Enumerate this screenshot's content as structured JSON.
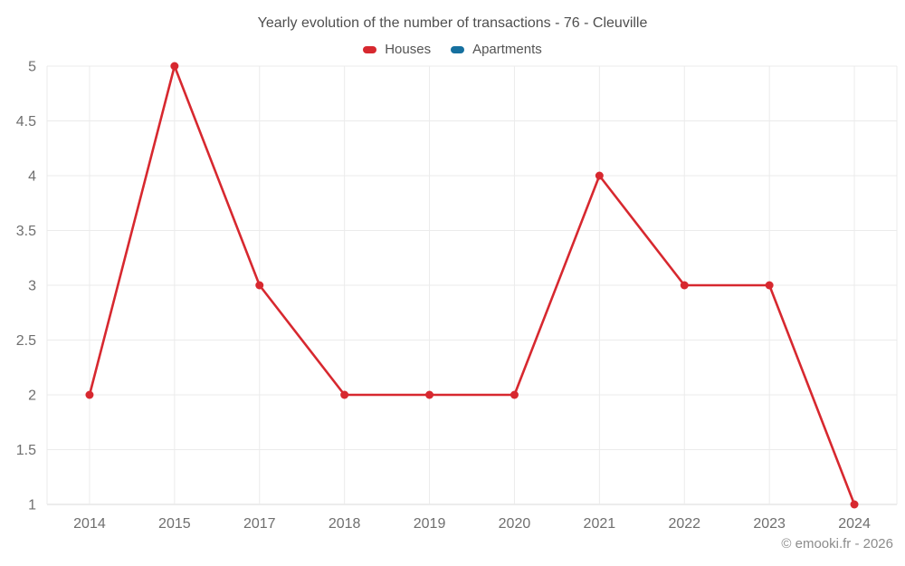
{
  "chart": {
    "title": "Yearly evolution of the number of transactions - 76 - Cleuville",
    "attribution": "© emooki.fr - 2026"
  },
  "chart_data": {
    "type": "line",
    "title": "Yearly evolution of the number of transactions - 76 - Cleuville",
    "categories": [
      "2014",
      "2015",
      "2017",
      "2018",
      "2019",
      "2020",
      "2021",
      "2022",
      "2023",
      "2024"
    ],
    "series": [
      {
        "name": "Houses",
        "color": "#d7282f",
        "values": [
          2,
          5,
          3,
          2,
          2,
          2,
          4,
          3,
          3,
          1
        ]
      },
      {
        "name": "Apartments",
        "color": "#16709f",
        "values": []
      }
    ],
    "xlabel": "",
    "ylabel": "",
    "ylim": [
      1,
      5
    ],
    "yticks": [
      5,
      4.5,
      4,
      3.5,
      3,
      2.5,
      2,
      1.5,
      1
    ],
    "grid": true,
    "legend_position": "top",
    "colors": {
      "grid": "#ebebeb",
      "axis_line": "#d9d9d9",
      "tick_label": "#6f6f6f",
      "title": "#4f4f4f",
      "legend_label": "#545454",
      "attribution": "#8c8c8c",
      "background": "#ffffff"
    }
  }
}
